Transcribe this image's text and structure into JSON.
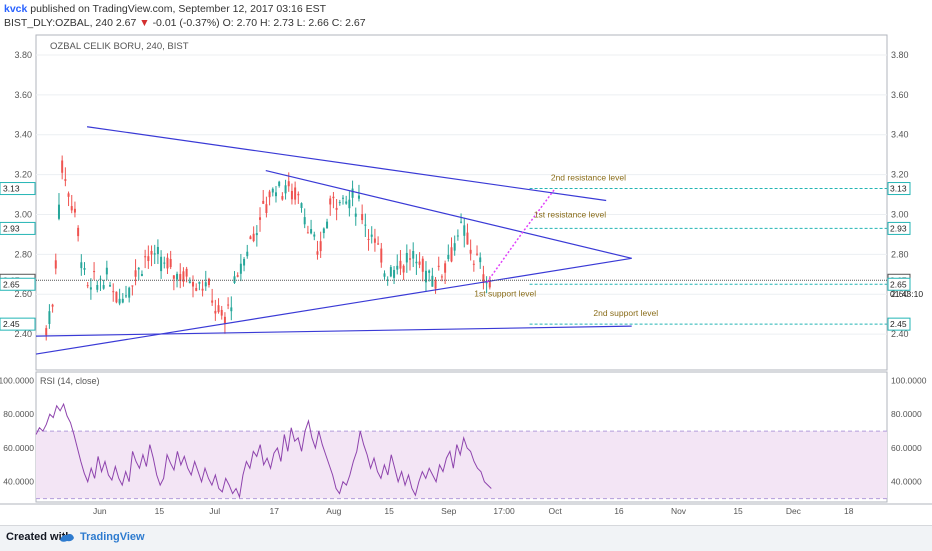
{
  "header": {
    "author": "kvck",
    "published_text": "published on TradingView.com, September 12, 2017 03:16 EST",
    "symbol": "BIST_DLY:OZBAL, 240",
    "last": "2.67",
    "change_arrow": "▼",
    "change": "-0.01 (-0.37%)",
    "ohlc": "O: 2.70 H: 2.73 L: 2.66 C: 2.67"
  },
  "chart_data": {
    "type": "candlestick",
    "title": "OZBAL CELIK BORU, 240, BIST",
    "price_axis": {
      "ylim": [
        2.22,
        3.9
      ],
      "ticks": [
        "3.80",
        "3.60",
        "3.40",
        "3.20",
        "3.00",
        "2.80",
        "2.60",
        "2.40"
      ]
    },
    "price_labels": [
      {
        "text": "3.13",
        "value": 3.13,
        "color": "#23b5b5"
      },
      {
        "text": "2.93",
        "value": 2.93,
        "color": "#23b5b5"
      },
      {
        "text": "2.67",
        "value": 2.67,
        "color": "#555555"
      },
      {
        "text": "2.65",
        "value": 2.65,
        "color": "#23b5b5"
      },
      {
        "text": "2.45",
        "value": 2.45,
        "color": "#23b5b5"
      }
    ],
    "right_extra_label": "01:43:10",
    "x_ticks": [
      "Jun",
      "15",
      "Jul",
      "17",
      "Aug",
      "15",
      "Sep",
      "17:00",
      "Oct",
      "16",
      "Nov",
      "15",
      "Dec",
      "18"
    ],
    "trend_lines": [
      {
        "name": "upper",
        "from": [
          0.06,
          3.44
        ],
        "to": [
          0.67,
          3.07
        ]
      },
      {
        "name": "mid-upper",
        "from": [
          0.27,
          3.22
        ],
        "to": [
          0.7,
          2.78
        ]
      },
      {
        "name": "rising",
        "from": [
          0.0,
          2.3
        ],
        "to": [
          0.7,
          2.78
        ]
      },
      {
        "name": "base",
        "from": [
          0.0,
          2.39
        ],
        "to": [
          0.7,
          2.44
        ]
      }
    ],
    "annotations": [
      {
        "text": "2nd resistance level",
        "value": 3.13
      },
      {
        "text": "1st resistance level",
        "value": 2.93
      },
      {
        "text": "1st support level",
        "value": 2.65
      },
      {
        "text": "2nd support level",
        "value": 2.45
      }
    ],
    "rsi": {
      "title": "RSI (14, close)",
      "ylim": [
        28,
        105
      ],
      "ticks": [
        "100.0000",
        "80.0000",
        "60.0000",
        "40.0000"
      ],
      "band": [
        30,
        70
      ],
      "values": [
        68,
        72,
        70,
        74,
        80,
        78,
        85,
        82,
        86,
        79,
        75,
        68,
        60,
        52,
        45,
        40,
        48,
        42,
        55,
        46,
        52,
        44,
        41,
        49,
        42,
        38,
        46,
        40,
        58,
        52,
        48,
        56,
        49,
        62,
        54,
        44,
        38,
        42,
        56,
        51,
        47,
        58,
        50,
        55,
        48,
        44,
        52,
        46,
        40,
        48,
        42,
        38,
        44,
        36,
        34,
        42,
        38,
        33,
        36,
        31,
        44,
        52,
        48,
        58,
        55,
        62,
        50,
        54,
        48,
        57,
        60,
        52,
        68,
        58,
        72,
        64,
        66,
        58,
        70,
        76,
        66,
        60,
        70,
        62,
        56,
        50,
        44,
        36,
        33,
        40,
        38,
        44,
        52,
        58,
        70,
        62,
        56,
        48,
        54,
        46,
        42,
        50,
        44,
        56,
        48,
        40,
        46,
        38,
        44,
        36,
        32,
        40,
        46,
        42,
        48,
        44,
        40,
        50,
        46,
        54,
        58,
        48,
        62,
        56,
        66,
        60,
        58,
        52,
        48,
        46,
        40,
        38,
        36
      ]
    }
  },
  "footer": {
    "created_with": "Created with",
    "brand": "TradingView"
  }
}
